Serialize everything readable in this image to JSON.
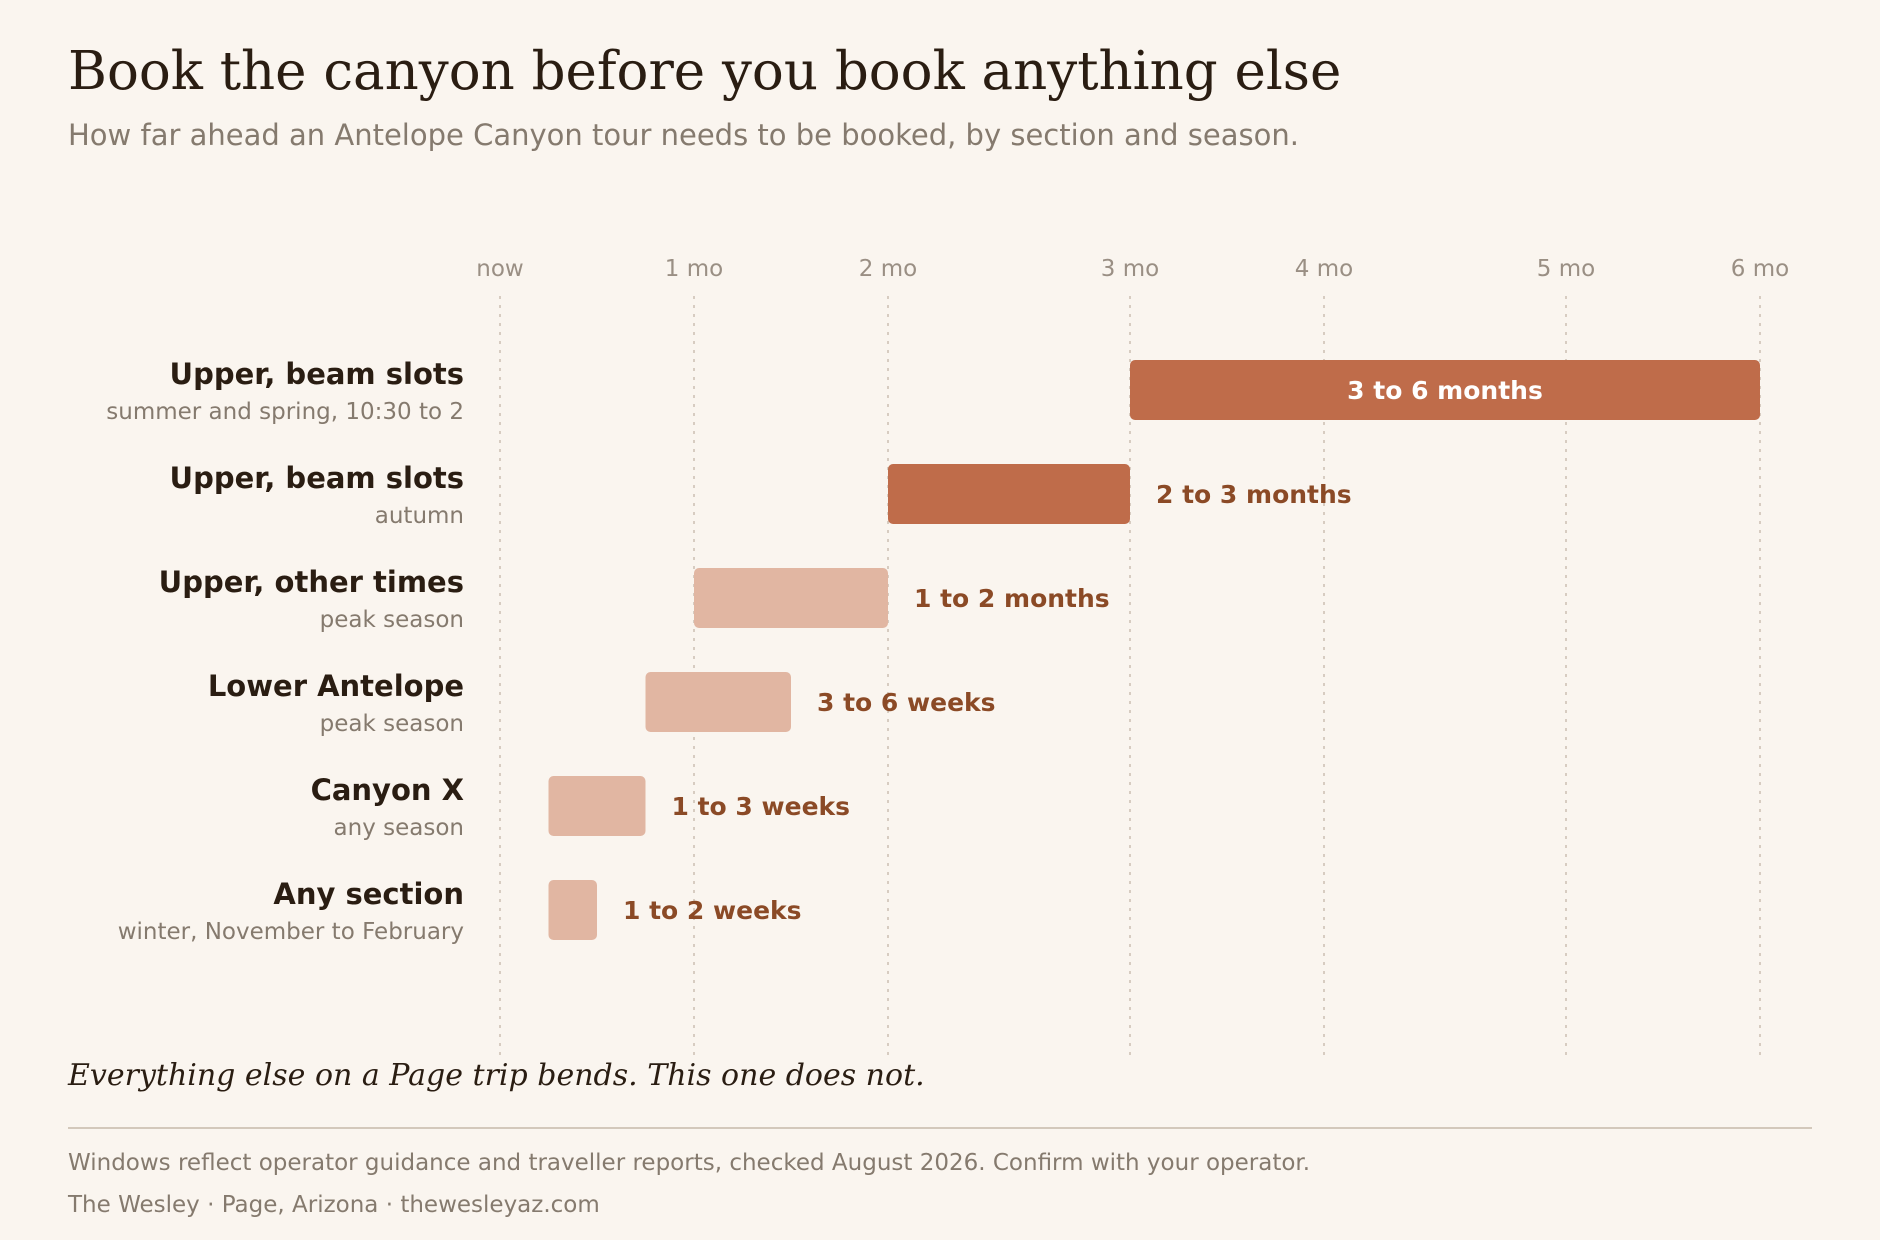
{
  "title": "Book the canyon before you book anything else",
  "subtitle": "How far ahead an Antelope Canyon tour needs to be booked, by section and season.",
  "tagline": "Everything else on a Page trip bends. This one does not.",
  "footer": {
    "note": "Windows reflect operator guidance and traveller reports, checked August 2026. Confirm with your operator.",
    "credit": "The Wesley · Page, Arizona · thewesleyaz.com"
  },
  "colors": {
    "background": "#faf5ef",
    "bar_strong": "#bf6c4a",
    "bar_light": "#e1b6a2",
    "label_accent": "#8b4a26",
    "text_dark": "#2a1d12",
    "text_muted": "#857a6e",
    "tick_text": "#9a8f84",
    "gridline": "#cbbfb2"
  },
  "chart_data": {
    "type": "bar",
    "orientation": "horizontal range",
    "x_unit": "months ahead",
    "xlim": [
      0,
      6
    ],
    "ticks": [
      {
        "label": "now",
        "value": 0
      },
      {
        "label": "1 mo",
        "value": 1
      },
      {
        "label": "2 mo",
        "value": 2
      },
      {
        "label": "3 mo",
        "value": 3
      },
      {
        "label": "4 mo",
        "value": 4
      },
      {
        "label": "5 mo",
        "value": 5
      },
      {
        "label": "6 mo",
        "value": 6
      }
    ],
    "grid": "vertical dotted",
    "rows": [
      {
        "name": "Upper, beam slots",
        "detail": "summer and spring, 10:30 to 2",
        "start": 3,
        "end": 6,
        "label": "3 to 6 months",
        "emphasis": "strong",
        "label_inside": true
      },
      {
        "name": "Upper, beam slots",
        "detail": "autumn",
        "start": 2,
        "end": 3,
        "label": "2 to 3 months",
        "emphasis": "strong",
        "label_inside": false
      },
      {
        "name": "Upper, other times",
        "detail": "peak season",
        "start": 1,
        "end": 2,
        "label": "1 to 2 months",
        "emphasis": "light",
        "label_inside": false
      },
      {
        "name": "Lower Antelope",
        "detail": "peak season",
        "start": 0.75,
        "end": 1.5,
        "label": "3 to 6 weeks",
        "emphasis": "light",
        "label_inside": false
      },
      {
        "name": "Canyon X",
        "detail": "any season",
        "start": 0.25,
        "end": 0.75,
        "label": "1 to 3 weeks",
        "emphasis": "light",
        "label_inside": false
      },
      {
        "name": "Any section",
        "detail": "winter, November to February",
        "start": 0.25,
        "end": 0.5,
        "label": "1 to 2 weeks",
        "emphasis": "light",
        "label_inside": false
      }
    ]
  }
}
